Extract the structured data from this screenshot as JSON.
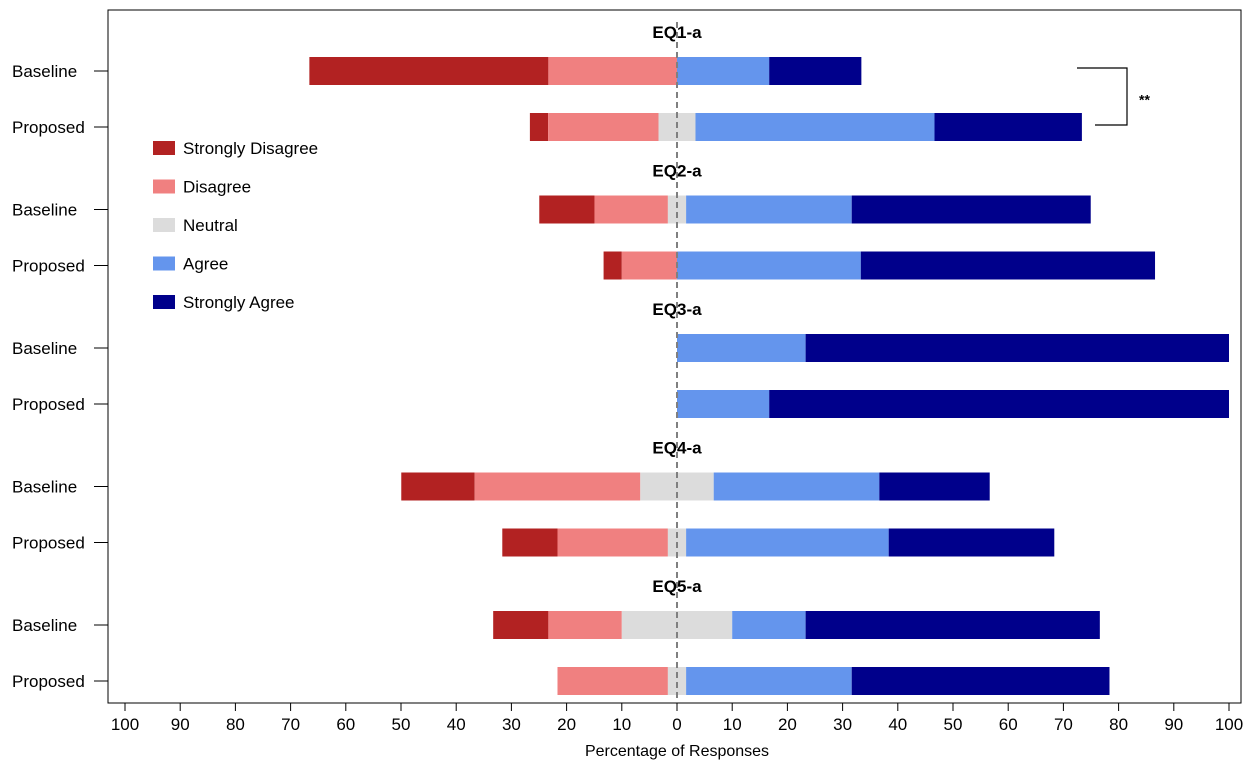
{
  "chart_data": {
    "type": "bar",
    "orientation": "horizontal-diverging",
    "xlabel": "Percentage of Responses",
    "x_ticks": [
      "100",
      "90",
      "80",
      "70",
      "60",
      "50",
      "40",
      "30",
      "20",
      "10",
      "0",
      "10",
      "20",
      "30",
      "40",
      "50",
      "60",
      "70",
      "80",
      "90",
      "100"
    ],
    "xlim": [
      -100,
      100
    ],
    "legend_position": "left",
    "categories_order": [
      "Strongly Disagree",
      "Disagree",
      "Neutral",
      "Agree",
      "Strongly Agree"
    ],
    "legend": [
      {
        "label": "Strongly Disagree",
        "color": "#b22222"
      },
      {
        "label": "Disagree",
        "color": "#f08080"
      },
      {
        "label": "Neutral",
        "color": "#dcdcdc"
      },
      {
        "label": "Agree",
        "color": "#6495ed"
      },
      {
        "label": "Strongly Agree",
        "color": "#00008b"
      }
    ],
    "groups": [
      {
        "title": "EQ1-a",
        "rows": [
          {
            "label": "Baseline",
            "values": [
              43.3,
              23.3,
              0,
              16.7,
              16.7
            ]
          },
          {
            "label": "Proposed",
            "values": [
              3.3,
              20.0,
              6.7,
              43.3,
              26.7
            ]
          }
        ],
        "significance": "**"
      },
      {
        "title": "EQ2-a",
        "rows": [
          {
            "label": "Baseline",
            "values": [
              10.0,
              13.3,
              3.3,
              30.0,
              43.3
            ]
          },
          {
            "label": "Proposed",
            "values": [
              3.3,
              10.0,
              0,
              33.3,
              53.3
            ]
          }
        ]
      },
      {
        "title": "EQ3-a",
        "rows": [
          {
            "label": "Baseline",
            "values": [
              0,
              0,
              0,
              23.3,
              76.7
            ]
          },
          {
            "label": "Proposed",
            "values": [
              0,
              0,
              0,
              16.7,
              83.3
            ]
          }
        ]
      },
      {
        "title": "EQ4-a",
        "rows": [
          {
            "label": "Baseline",
            "values": [
              13.3,
              30.0,
              13.3,
              30.0,
              20.0
            ]
          },
          {
            "label": "Proposed",
            "values": [
              10.0,
              20.0,
              3.3,
              36.7,
              30.0
            ]
          }
        ]
      },
      {
        "title": "EQ5-a",
        "rows": [
          {
            "label": "Baseline",
            "values": [
              10.0,
              13.3,
              20.0,
              13.3,
              53.3
            ]
          },
          {
            "label": "Proposed",
            "values": [
              0,
              20.0,
              3.3,
              30.0,
              46.7
            ]
          }
        ]
      }
    ]
  }
}
